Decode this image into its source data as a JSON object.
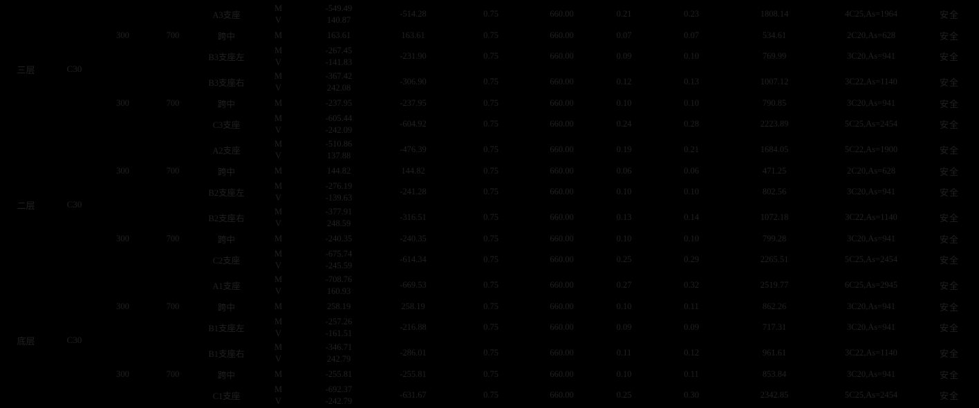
{
  "meta": {
    "background_color": "#000000",
    "text_color": "#202020",
    "status_safe_label": "安全"
  },
  "table": {
    "blocks": [
      {
        "floor": "三层",
        "concrete": "C30",
        "rows": [
          {
            "b": "",
            "h": "",
            "position": "A3支座",
            "entries": [
              [
                "M",
                "-549.49"
              ],
              [
                "V",
                "140.87"
              ]
            ],
            "m_design": "-514.28",
            "gamma": "0.75",
            "h0": "660.00",
            "xi": "0.21",
            "rho": "0.23",
            "as_req": "1808.14",
            "rebar": "4C25,As=1964",
            "status": "安全"
          },
          {
            "b": "300",
            "h": "700",
            "position": "跨中",
            "entries": [
              [
                "M",
                "163.61"
              ]
            ],
            "m_design": "163.61",
            "gamma": "0.75",
            "h0": "660.00",
            "xi": "0.07",
            "rho": "0.07",
            "as_req": "534.61",
            "rebar": "2C20,As=628",
            "status": "安全"
          },
          {
            "b": "",
            "h": "",
            "position": "B3支座左",
            "entries": [
              [
                "M",
                "-267.45"
              ],
              [
                "V",
                "-141.83"
              ]
            ],
            "m_design": "-231.90",
            "gamma": "0.75",
            "h0": "660.00",
            "xi": "0.09",
            "rho": "0.10",
            "as_req": "769.99",
            "rebar": "3C20,As=941",
            "status": "安全"
          },
          {
            "b": "",
            "h": "",
            "position": "B3支座右",
            "entries": [
              [
                "M",
                "-367.42"
              ],
              [
                "V",
                "242.08"
              ]
            ],
            "m_design": "-306.90",
            "gamma": "0.75",
            "h0": "660.00",
            "xi": "0.12",
            "rho": "0.13",
            "as_req": "1007.12",
            "rebar": "3C22,As=1140",
            "status": "安全"
          },
          {
            "b": "300",
            "h": "700",
            "position": "跨中",
            "entries": [
              [
                "M",
                "-237.95"
              ]
            ],
            "m_design": "-237.95",
            "gamma": "0.75",
            "h0": "660.00",
            "xi": "0.10",
            "rho": "0.10",
            "as_req": "790.85",
            "rebar": "3C20,As=941",
            "status": "安全"
          },
          {
            "b": "",
            "h": "",
            "position": "C3支座",
            "entries": [
              [
                "M",
                "-605.44"
              ],
              [
                "V",
                "-242.09"
              ]
            ],
            "m_design": "-604.92",
            "gamma": "0.75",
            "h0": "660.00",
            "xi": "0.24",
            "rho": "0.28",
            "as_req": "2223.89",
            "rebar": "5C25,As=2454",
            "status": "安全"
          }
        ]
      },
      {
        "floor": "二层",
        "concrete": "C30",
        "rows": [
          {
            "b": "",
            "h": "",
            "position": "A2支座",
            "entries": [
              [
                "M",
                "-510.86"
              ],
              [
                "V",
                "137.88"
              ]
            ],
            "m_design": "-476.39",
            "gamma": "0.75",
            "h0": "660.00",
            "xi": "0.19",
            "rho": "0.21",
            "as_req": "1684.05",
            "rebar": "5C22,As=1900",
            "status": "安全"
          },
          {
            "b": "300",
            "h": "700",
            "position": "跨中",
            "entries": [
              [
                "M",
                "144.82"
              ]
            ],
            "m_design": "144.82",
            "gamma": "0.75",
            "h0": "660.00",
            "xi": "0.06",
            "rho": "0.06",
            "as_req": "471.25",
            "rebar": "2C20,As=628",
            "status": "安全"
          },
          {
            "b": "",
            "h": "",
            "position": "B2支座左",
            "entries": [
              [
                "M",
                "-276.19"
              ],
              [
                "V",
                "-139.63"
              ]
            ],
            "m_design": "-241.28",
            "gamma": "0.75",
            "h0": "660.00",
            "xi": "0.10",
            "rho": "0.10",
            "as_req": "802.56",
            "rebar": "3C20,As=941",
            "status": "安全"
          },
          {
            "b": "",
            "h": "",
            "position": "B2支座右",
            "entries": [
              [
                "M",
                "-377.91"
              ],
              [
                "V",
                "248.59"
              ]
            ],
            "m_design": "-316.51",
            "gamma": "0.75",
            "h0": "660.00",
            "xi": "0.13",
            "rho": "0.14",
            "as_req": "1072.18",
            "rebar": "3C22,As=1140",
            "status": "安全"
          },
          {
            "b": "300",
            "h": "700",
            "position": "跨中",
            "entries": [
              [
                "M",
                "-240.35"
              ]
            ],
            "m_design": "-240.35",
            "gamma": "0.75",
            "h0": "660.00",
            "xi": "0.10",
            "rho": "0.10",
            "as_req": "799.28",
            "rebar": "3C20,As=941",
            "status": "安全"
          },
          {
            "b": "",
            "h": "",
            "position": "C2支座",
            "entries": [
              [
                "M",
                "-675.74"
              ],
              [
                "V",
                "-245.59"
              ]
            ],
            "m_design": "-614.34",
            "gamma": "0.75",
            "h0": "660.00",
            "xi": "0.25",
            "rho": "0.29",
            "as_req": "2265.51",
            "rebar": "5C25,As=2454",
            "status": "安全"
          }
        ]
      },
      {
        "floor": "底层",
        "concrete": "C30",
        "rows": [
          {
            "b": "",
            "h": "",
            "position": "A1支座",
            "entries": [
              [
                "M",
                "-708.76"
              ],
              [
                "V",
                "160.93"
              ]
            ],
            "m_design": "-669.53",
            "gamma": "0.75",
            "h0": "660.00",
            "xi": "0.27",
            "rho": "0.32",
            "as_req": "2519.77",
            "rebar": "6C25,As=2945",
            "status": "安全"
          },
          {
            "b": "300",
            "h": "700",
            "position": "跨中",
            "entries": [
              [
                "M",
                "258.19"
              ]
            ],
            "m_design": "258.19",
            "gamma": "0.75",
            "h0": "660.00",
            "xi": "0.10",
            "rho": "0.11",
            "as_req": "862.26",
            "rebar": "3C20,As=941",
            "status": "安全"
          },
          {
            "b": "",
            "h": "",
            "position": "B1支座左",
            "entries": [
              [
                "M",
                "-257.26"
              ],
              [
                "V",
                "-161.51"
              ]
            ],
            "m_design": "-216.88",
            "gamma": "0.75",
            "h0": "660.00",
            "xi": "0.09",
            "rho": "0.09",
            "as_req": "717.31",
            "rebar": "3C20,As=941",
            "status": "安全"
          },
          {
            "b": "",
            "h": "",
            "position": "B1支座右",
            "entries": [
              [
                "M",
                "-346.71"
              ],
              [
                "V",
                "242.79"
              ]
            ],
            "m_design": "-286.01",
            "gamma": "0.75",
            "h0": "660.00",
            "xi": "0.11",
            "rho": "0.12",
            "as_req": "961.61",
            "rebar": "3C22,As=1140",
            "status": "安全"
          },
          {
            "b": "300",
            "h": "700",
            "position": "跨中",
            "entries": [
              [
                "M",
                "-255.81"
              ]
            ],
            "m_design": "-255.81",
            "gamma": "0.75",
            "h0": "660.00",
            "xi": "0.10",
            "rho": "0.11",
            "as_req": "853.84",
            "rebar": "3C20,As=941",
            "status": "安全"
          },
          {
            "b": "",
            "h": "",
            "position": "C1支座",
            "entries": [
              [
                "M",
                "-692.37"
              ],
              [
                "V",
                "-242.79"
              ]
            ],
            "m_design": "-631.67",
            "gamma": "0.75",
            "h0": "660.00",
            "xi": "0.25",
            "rho": "0.30",
            "as_req": "2342.85",
            "rebar": "5C25,As=2454",
            "status": "安全"
          }
        ]
      }
    ]
  }
}
